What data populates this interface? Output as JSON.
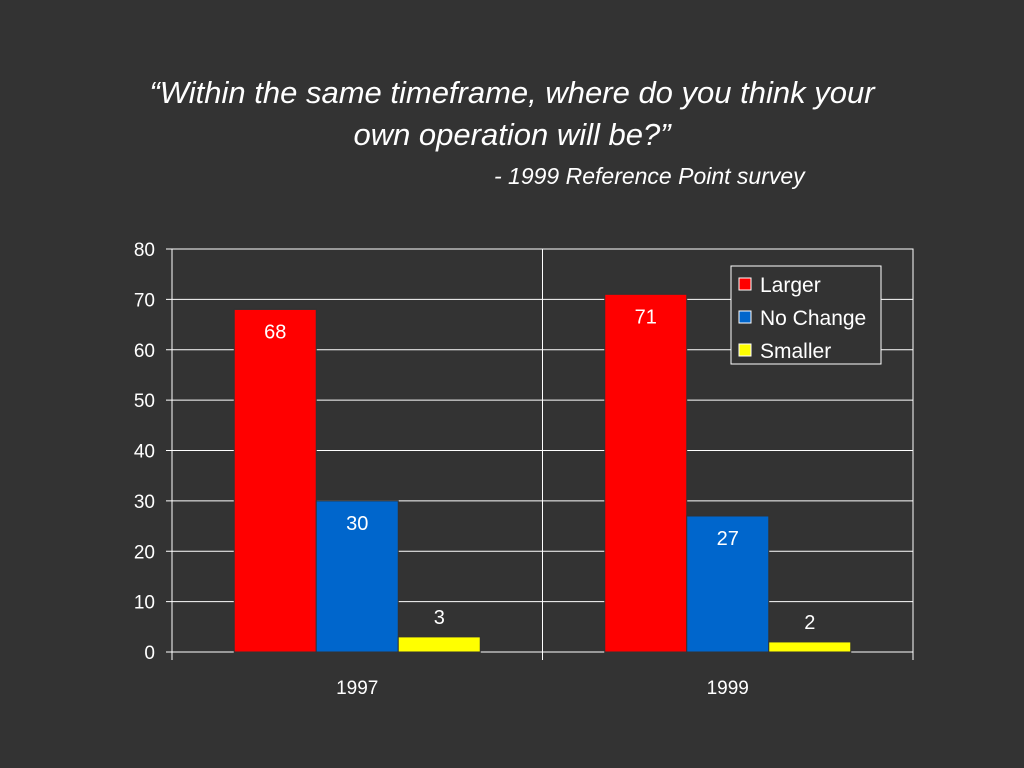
{
  "title": {
    "line1": "“Within the same timeframe, where do you think your",
    "line2": "own operation will be?”"
  },
  "subtitle": "- 1999 Reference Point survey",
  "colors": {
    "background": "#333333",
    "Larger": "#ff0000",
    "No Change": "#0066cc",
    "Smaller": "#ffff00",
    "grid": "#ffffff"
  },
  "chart_data": {
    "type": "bar",
    "categories": [
      "1997",
      "1999"
    ],
    "series": [
      {
        "name": "Larger",
        "values": [
          68,
          71
        ]
      },
      {
        "name": "No Change",
        "values": [
          30,
          27
        ]
      },
      {
        "name": "Smaller",
        "values": [
          3,
          2
        ]
      }
    ],
    "ylim": [
      0,
      80
    ],
    "yticks": [
      0,
      10,
      20,
      30,
      40,
      50,
      60,
      70,
      80
    ],
    "xlabel": "",
    "ylabel": "",
    "grid": true,
    "legend": "top-right",
    "data_labels": true
  }
}
